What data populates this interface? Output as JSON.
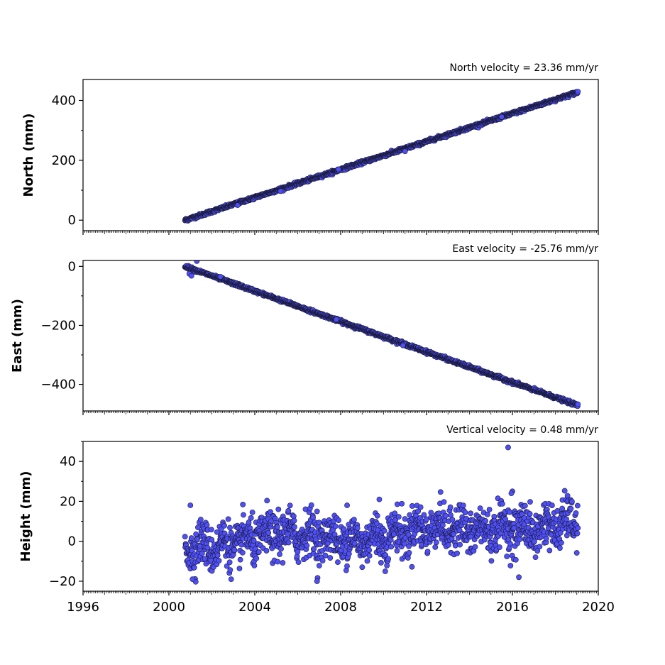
{
  "chart_data": [
    {
      "type": "scatter",
      "title": "North velocity = 23.36 mm/yr",
      "ylabel": "North (mm)",
      "xlim": [
        1996,
        2020
      ],
      "ylim": [
        -35,
        470
      ],
      "yticks": [
        0,
        200,
        400
      ],
      "ytick_labels": [
        "0",
        "200",
        "400"
      ],
      "x_start": 2000.75,
      "x_end": 2019.05,
      "y_start": 0,
      "velocity_mm_per_yr": 23.36,
      "noise_mm": 2.5,
      "outliers": [
        [
          2003.2,
          50
        ],
        [
          2005.2,
          97
        ],
        [
          2007.9,
          170
        ],
        [
          2011.0,
          230
        ],
        [
          2015.5,
          345
        ]
      ]
    },
    {
      "type": "scatter",
      "title": "East velocity = -25.76 mm/yr",
      "ylabel": "East (mm)",
      "xlim": [
        1996,
        2020
      ],
      "ylim": [
        -490,
        20
      ],
      "yticks": [
        0,
        -200,
        -400
      ],
      "ytick_labels": [
        "0",
        "−200",
        "−400"
      ],
      "x_start": 2000.75,
      "x_end": 2019.05,
      "y_start": 0,
      "velocity_mm_per_yr": -25.76,
      "noise_mm": 2.5,
      "outliers": [
        [
          2000.95,
          -25
        ],
        [
          2001.05,
          -32
        ],
        [
          2001.3,
          18
        ],
        [
          2002.4,
          -35
        ],
        [
          2007.8,
          -180
        ],
        [
          2010.9,
          -268
        ]
      ]
    },
    {
      "type": "scatter",
      "title": "Vertical velocity = 0.48 mm/yr",
      "ylabel": "Height (mm)",
      "xlim": [
        1996,
        2020
      ],
      "ylim": [
        -25,
        50
      ],
      "yticks": [
        -20,
        0,
        20,
        40
      ],
      "ytick_labels": [
        "−20",
        "0",
        "20",
        "40"
      ],
      "x_start": 2000.75,
      "x_end": 2019.05,
      "y_start": -1,
      "velocity_mm_per_yr": 0.48,
      "noise_mm": 5.5,
      "outliers": [
        [
          2015.8,
          47
        ],
        [
          2016.0,
          25
        ],
        [
          2015.95,
          24
        ],
        [
          2009.8,
          21
        ],
        [
          2008.3,
          18
        ],
        [
          2001.0,
          18
        ],
        [
          2005.1,
          16
        ],
        [
          2006.9,
          15
        ],
        [
          2006.9,
          -20
        ],
        [
          2002.9,
          -19
        ],
        [
          2001.1,
          -19
        ],
        [
          2016.3,
          -18
        ]
      ]
    }
  ],
  "x_axis": {
    "ticks": [
      1996,
      2000,
      2004,
      2008,
      2012,
      2016,
      2020
    ],
    "tick_labels": [
      "1996",
      "2000",
      "2004",
      "2008",
      "2012",
      "2016",
      "2020"
    ]
  },
  "colors": {
    "marker_fill": "#4f4ff7",
    "marker_edge": "#1a1a3a",
    "axes": "#000000",
    "background": "#ffffff"
  }
}
